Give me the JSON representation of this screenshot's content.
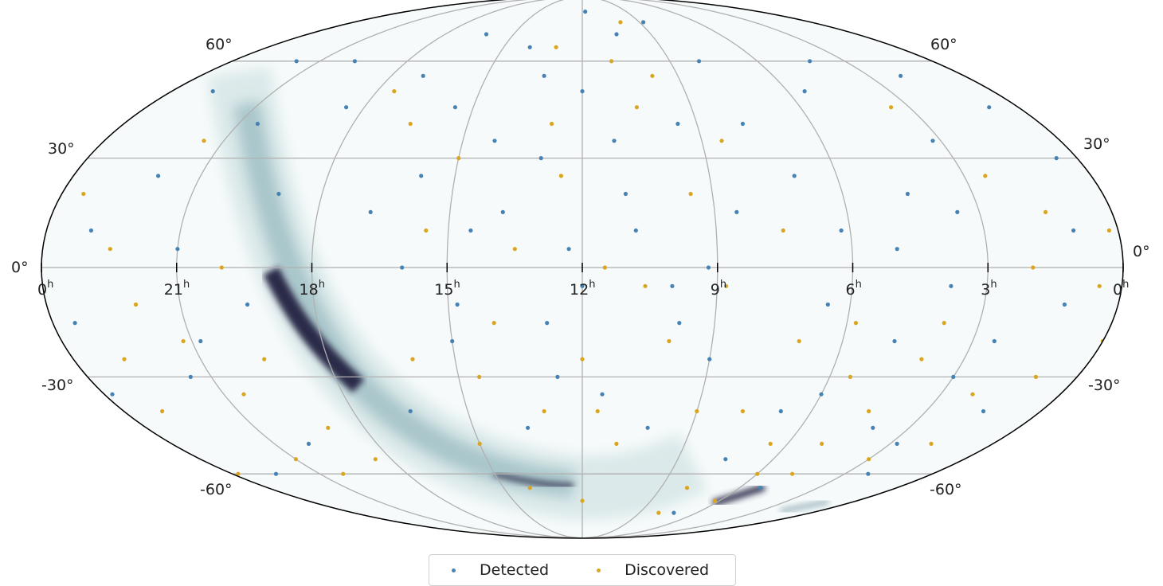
{
  "chart_data": {
    "type": "scatter",
    "projection": "mollweide",
    "x_axis": {
      "quantity": "right ascension",
      "unit": "h",
      "direction": "increasing-left",
      "range": [
        0,
        24
      ],
      "tick_labels": [
        "0",
        "21",
        "18",
        "15",
        "12",
        "9",
        "6",
        "3",
        "0"
      ]
    },
    "y_axis": {
      "quantity": "declination",
      "unit": "deg",
      "range": [
        -90,
        90
      ],
      "tick_labels": [
        "60°",
        "30°",
        "0°",
        "-30°",
        "-60°"
      ]
    },
    "grid": true,
    "background": "galactic dust map (dark band along Milky Way)",
    "legend": {
      "placement": "bottom-center"
    },
    "series": [
      {
        "name": "Detected",
        "color": "#4682b4",
        "points": [
          [
            1,
            10
          ],
          [
            2.5,
            -20
          ],
          [
            3.2,
            35
          ],
          [
            4,
            -45
          ],
          [
            5,
            5
          ],
          [
            5.5,
            50
          ],
          [
            6.5,
            -10
          ],
          [
            7,
            25
          ],
          [
            7.5,
            -55
          ],
          [
            8,
            60
          ],
          [
            8.5,
            15
          ],
          [
            9,
            -25
          ],
          [
            9.5,
            40
          ],
          [
            10,
            -5
          ],
          [
            10.5,
            70
          ],
          [
            11,
            20
          ],
          [
            11.5,
            -35
          ],
          [
            12,
            50
          ],
          [
            12.3,
            5
          ],
          [
            12.8,
            -15
          ],
          [
            13,
            30
          ],
          [
            13.5,
            -45
          ],
          [
            14,
            65
          ],
          [
            14.5,
            10
          ],
          [
            15,
            -20
          ],
          [
            15.5,
            45
          ],
          [
            16,
            0
          ],
          [
            16.5,
            -40
          ],
          [
            17,
            55
          ],
          [
            19,
            20
          ],
          [
            19.5,
            -10
          ],
          [
            20,
            -50
          ],
          [
            20.5,
            40
          ],
          [
            21,
            5
          ],
          [
            21.5,
            -30
          ],
          [
            22,
            25
          ],
          [
            22.5,
            -60
          ],
          [
            23,
            10
          ],
          [
            23.5,
            -15
          ],
          [
            0.5,
            30
          ],
          [
            1.5,
            -40
          ],
          [
            2,
            55
          ],
          [
            3.8,
            -5
          ],
          [
            4.5,
            20
          ],
          [
            6,
            -35
          ],
          [
            7.8,
            40
          ],
          [
            9.2,
            0
          ],
          [
            10.2,
            -45
          ],
          [
            11.2,
            35
          ],
          [
            12.6,
            -30
          ],
          [
            13.8,
            15
          ],
          [
            14.8,
            -10
          ],
          [
            15.8,
            25
          ],
          [
            16.8,
            15
          ],
          [
            18.5,
            45
          ],
          [
            20.8,
            -20
          ],
          [
            22.8,
            50
          ],
          [
            23.8,
            -35
          ],
          [
            2.2,
            -60
          ],
          [
            5.2,
            -65
          ],
          [
            8.8,
            75
          ],
          [
            11.8,
            80
          ],
          [
            13.2,
            55
          ],
          [
            10.8,
            10
          ],
          [
            9.8,
            -15
          ],
          [
            12,
            -5
          ],
          [
            14.2,
            35
          ],
          [
            3,
            -30
          ],
          [
            1.2,
            -10
          ],
          [
            6.8,
            -40
          ],
          [
            4.2,
            60
          ],
          [
            0.8,
            45
          ],
          [
            21.8,
            60
          ],
          [
            19.8,
            60
          ],
          [
            16.2,
            70
          ],
          [
            7.2,
            -75
          ],
          [
            6.2,
            10
          ],
          [
            4.8,
            -20
          ],
          [
            3.5,
            15
          ],
          [
            2.8,
            -50
          ]
        ]
      },
      {
        "name": "Discovered",
        "color": "#daa520",
        "points": [
          [
            1,
            -30
          ],
          [
            2,
            0
          ],
          [
            3,
            -55
          ],
          [
            4,
            -25
          ],
          [
            5,
            -50
          ],
          [
            6,
            -60
          ],
          [
            3.5,
            45
          ],
          [
            2.5,
            25
          ],
          [
            0.5,
            -5
          ],
          [
            23.5,
            20
          ],
          [
            23,
            -40
          ],
          [
            22,
            -10
          ],
          [
            21,
            -55
          ],
          [
            20,
            0
          ],
          [
            19,
            -45
          ],
          [
            21.5,
            35
          ],
          [
            22.5,
            5
          ],
          [
            20.5,
            -35
          ],
          [
            1.5,
            15
          ],
          [
            4.5,
            -40
          ],
          [
            5.5,
            -30
          ],
          [
            6.5,
            -50
          ],
          [
            7,
            -20
          ],
          [
            8,
            -65
          ],
          [
            9,
            -40
          ],
          [
            10,
            -20
          ],
          [
            11,
            -50
          ],
          [
            12,
            -25
          ],
          [
            13,
            -40
          ],
          [
            14,
            -15
          ],
          [
            15,
            -50
          ],
          [
            16,
            -25
          ],
          [
            9.5,
            20
          ],
          [
            10.5,
            45
          ],
          [
            11.5,
            0
          ],
          [
            12.5,
            25
          ],
          [
            13.5,
            5
          ],
          [
            14.5,
            -30
          ],
          [
            15.5,
            10
          ],
          [
            8.5,
            35
          ],
          [
            7.5,
            10
          ],
          [
            11,
            60
          ],
          [
            13,
            65
          ],
          [
            10,
            75
          ],
          [
            12,
            -70
          ],
          [
            14,
            -65
          ],
          [
            8,
            -75
          ],
          [
            0,
            -20
          ],
          [
            23.8,
            -60
          ],
          [
            2.2,
            -35
          ],
          [
            3.8,
            -15
          ],
          [
            4.8,
            -60
          ],
          [
            5.8,
            -15
          ],
          [
            6.2,
            -70
          ],
          [
            1.8,
            -50
          ],
          [
            0.2,
            10
          ],
          [
            22.8,
            -25
          ],
          [
            21.2,
            -20
          ],
          [
            20.2,
            -60
          ],
          [
            19.5,
            -25
          ],
          [
            18.5,
            -55
          ],
          [
            17.5,
            50
          ],
          [
            16.5,
            40
          ],
          [
            15,
            30
          ],
          [
            12.8,
            40
          ],
          [
            9.8,
            55
          ],
          [
            8.8,
            -5
          ],
          [
            7.8,
            -40
          ],
          [
            10.6,
            -5
          ],
          [
            11.6,
            -40
          ]
        ]
      }
    ]
  },
  "legend": {
    "detected": "Detected",
    "discovered": "Discovered"
  }
}
